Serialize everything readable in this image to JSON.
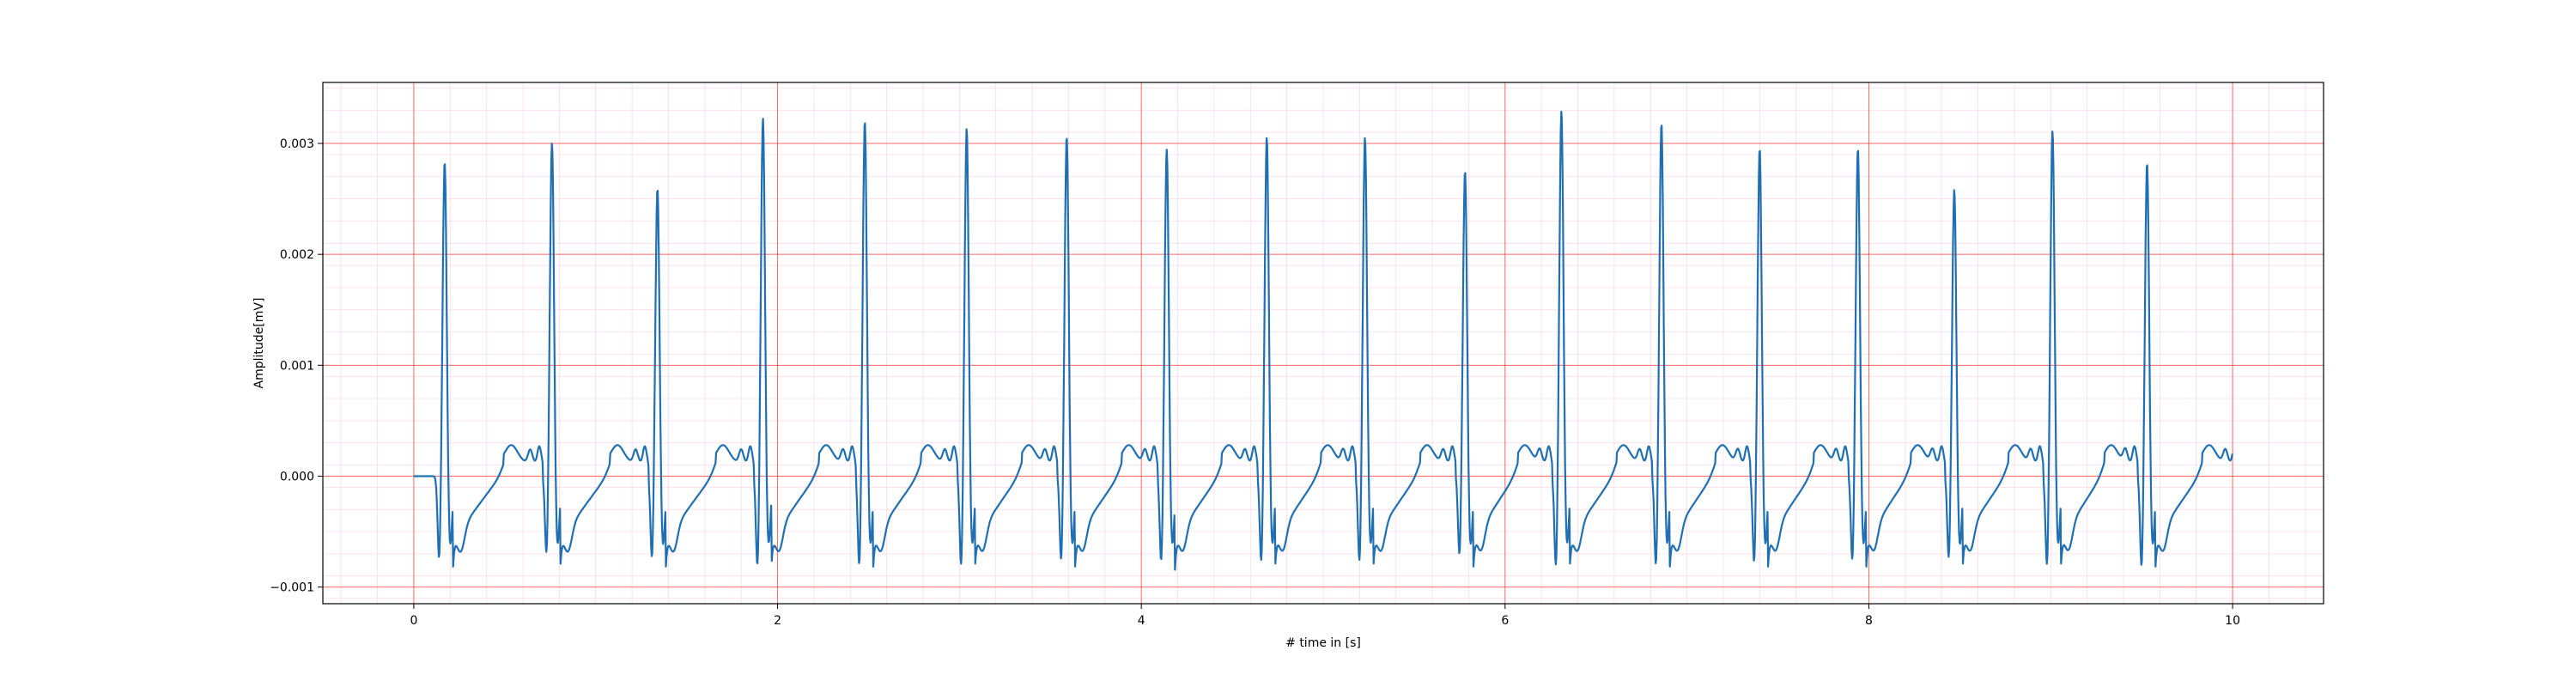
{
  "chart_data": {
    "type": "line",
    "title": "",
    "xlabel": "# time in [s]",
    "ylabel": "Amplitude[mV]",
    "xlim": [
      -0.5,
      10.5
    ],
    "ylim": [
      -0.00115,
      0.00355
    ],
    "x_ticks": [
      0,
      2,
      4,
      6,
      8,
      10
    ],
    "x_tick_labels": [
      "0",
      "2",
      "4",
      "6",
      "8",
      "10"
    ],
    "y_ticks": [
      -0.001,
      0.0,
      0.001,
      0.002,
      0.003
    ],
    "y_tick_labels": [
      "−0.001",
      "0.000",
      "0.001",
      "0.002",
      "0.003"
    ],
    "grid": true,
    "minor_grid": true,
    "grid_color": "#ff3333",
    "minor_grid_color": "#ffb6c8",
    "line_color": "#1f6fb2",
    "series": [
      {
        "values_note": "ECG-like trace",
        "beats": [
          {
            "r_time": 0.17,
            "r_peak": 0.00288,
            "q_min": -0.00086
          },
          {
            "r_time": 0.76,
            "r_peak": 0.00305,
            "q_min": -0.00081
          },
          {
            "r_time": 1.34,
            "r_peak": 0.00264,
            "q_min": -0.00085
          },
          {
            "r_time": 1.92,
            "r_peak": 0.00327,
            "q_min": -0.00094
          },
          {
            "r_time": 2.48,
            "r_peak": 0.00325,
            "q_min": -0.00093
          },
          {
            "r_time": 3.04,
            "r_peak": 0.00318,
            "q_min": -0.00093
          },
          {
            "r_time": 3.59,
            "r_peak": 0.00311,
            "q_min": -0.00088
          },
          {
            "r_time": 4.14,
            "r_peak": 0.00299,
            "q_min": -0.00089
          },
          {
            "r_time": 4.69,
            "r_peak": 0.0031,
            "q_min": -0.00089
          },
          {
            "r_time": 5.23,
            "r_peak": 0.0031,
            "q_min": -0.00089
          },
          {
            "r_time": 5.78,
            "r_peak": 0.0028,
            "q_min": -0.00082
          },
          {
            "r_time": 6.31,
            "r_peak": 0.00334,
            "q_min": -0.00094
          },
          {
            "r_time": 6.86,
            "r_peak": 0.00323,
            "q_min": -0.00093
          },
          {
            "r_time": 7.4,
            "r_peak": 0.003,
            "q_min": -0.0009
          },
          {
            "r_time": 7.94,
            "r_peak": 0.003,
            "q_min": -0.00088
          },
          {
            "r_time": 8.47,
            "r_peak": 0.00263,
            "q_min": -0.00085
          },
          {
            "r_time": 9.01,
            "r_peak": 0.00316,
            "q_min": -0.00093
          },
          {
            "r_time": 9.53,
            "r_peak": 0.00287,
            "q_min": -0.00094
          }
        ]
      }
    ]
  }
}
